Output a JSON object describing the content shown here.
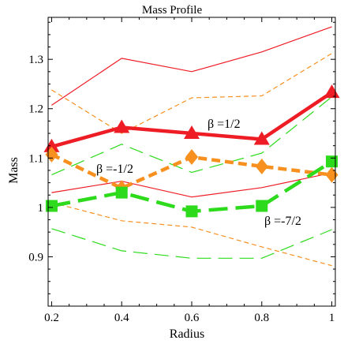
{
  "chart_data": {
    "type": "line",
    "title": "Mass Profile",
    "xlabel": "Radius",
    "ylabel": "Mass",
    "xlim": [
      0.19,
      1.01
    ],
    "ylim": [
      0.8,
      1.385
    ],
    "x": [
      0.2,
      0.4,
      0.6,
      0.8,
      1.0
    ],
    "x_ticks": [
      "0.2",
      "0.4",
      "0.6",
      "0.8",
      "1"
    ],
    "y_ticks": [
      "0.9",
      "1",
      "1.1",
      "1.2",
      "1.3"
    ],
    "x_tick_values": [
      0.2,
      0.4,
      0.6,
      0.8,
      1.0
    ],
    "y_tick_values": [
      0.9,
      1.0,
      1.1,
      1.2,
      1.3
    ],
    "grid": false,
    "series": [
      {
        "key": "beta-half",
        "name": "β =1/2",
        "color": "#ee1c25",
        "style": "solid",
        "marker": "triangle",
        "values": [
          1.123,
          1.162,
          1.15,
          1.138,
          1.233
        ],
        "upper": [
          1.207,
          1.302,
          1.275,
          1.315,
          1.366
        ],
        "lower": [
          1.03,
          1.053,
          1.021,
          1.04,
          1.07
        ]
      },
      {
        "key": "beta-minus-half",
        "name": "β =-1/2",
        "color": "#f7901e",
        "style": "dashed",
        "marker": "diamond",
        "values": [
          1.107,
          1.039,
          1.102,
          1.083,
          1.066
        ],
        "upper": [
          1.238,
          1.15,
          1.222,
          1.226,
          1.312
        ],
        "lower": [
          1.01,
          0.973,
          0.96,
          0.92,
          0.882
        ]
      },
      {
        "key": "beta-minus-seven-half",
        "name": "β =-7/2",
        "color": "#2ddb1c",
        "style": "longdash",
        "marker": "square",
        "values": [
          1.003,
          1.03,
          0.992,
          1.003,
          1.093
        ],
        "upper": [
          1.066,
          1.128,
          1.071,
          1.11,
          1.224
        ],
        "lower": [
          0.957,
          0.912,
          0.897,
          0.897,
          0.955
        ]
      }
    ]
  }
}
